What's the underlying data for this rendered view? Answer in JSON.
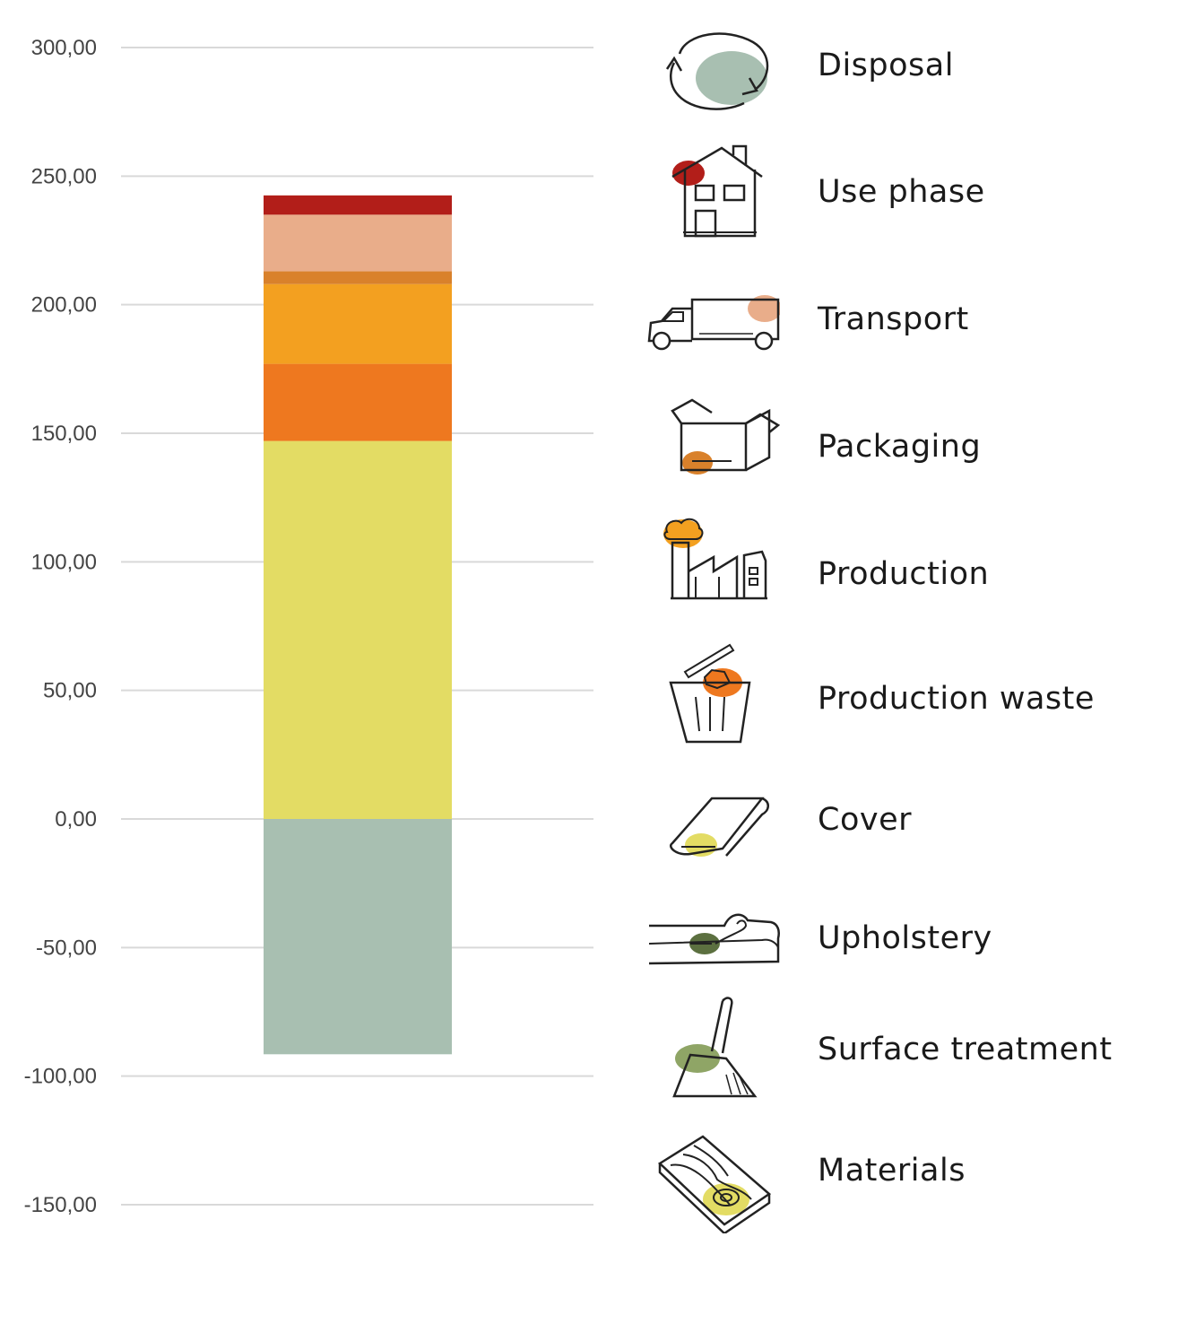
{
  "chart_data": {
    "type": "bar",
    "stacked": true,
    "categories": [
      ""
    ],
    "ylim": [
      -150,
      300
    ],
    "yticks": [
      300,
      250,
      200,
      150,
      100,
      50,
      0,
      -50,
      -100,
      -150
    ],
    "ytick_labels": [
      "300,00",
      "250,00",
      "200,00",
      "150,00",
      "100,00",
      "50,00",
      "0,00",
      "-50,00",
      "-100,00",
      "-150,00"
    ],
    "grid": true,
    "legend_position": "right",
    "series": [
      {
        "name": "Materials",
        "values": [
          147
        ],
        "color": "#E3DC64"
      },
      {
        "name": "Surface treatment",
        "values": [
          0
        ],
        "color": "#8FA566"
      },
      {
        "name": "Upholstery",
        "values": [
          0
        ],
        "color": "#5C7040"
      },
      {
        "name": "Cover",
        "values": [
          0
        ],
        "color": "#E3DC64"
      },
      {
        "name": "Production waste",
        "values": [
          30
        ],
        "color": "#EE781F"
      },
      {
        "name": "Production",
        "values": [
          31
        ],
        "color": "#F3A020"
      },
      {
        "name": "Packaging",
        "values": [
          5
        ],
        "color": "#D9812B"
      },
      {
        "name": "Transport",
        "values": [
          22
        ],
        "color": "#E9AD8A"
      },
      {
        "name": "Use phase",
        "values": [
          7.5
        ],
        "color": "#B21E19"
      },
      {
        "name": "Disposal",
        "values": [
          -91.5
        ],
        "color": "#A8BFB1"
      }
    ]
  },
  "legend": [
    {
      "label": "Disposal",
      "icon": "recycle-arrows-icon"
    },
    {
      "label": "Use phase",
      "icon": "house-icon"
    },
    {
      "label": "Transport",
      "icon": "truck-icon"
    },
    {
      "label": "Packaging",
      "icon": "open-box-icon"
    },
    {
      "label": "Production",
      "icon": "factory-icon"
    },
    {
      "label": "Production waste",
      "icon": "trash-bin-icon"
    },
    {
      "label": "Cover",
      "icon": "fabric-roll-icon"
    },
    {
      "label": "Upholstery",
      "icon": "foam-cushion-icon"
    },
    {
      "label": "Surface treatment",
      "icon": "paint-brush-icon"
    },
    {
      "label": "Materials",
      "icon": "wood-plank-icon"
    }
  ]
}
